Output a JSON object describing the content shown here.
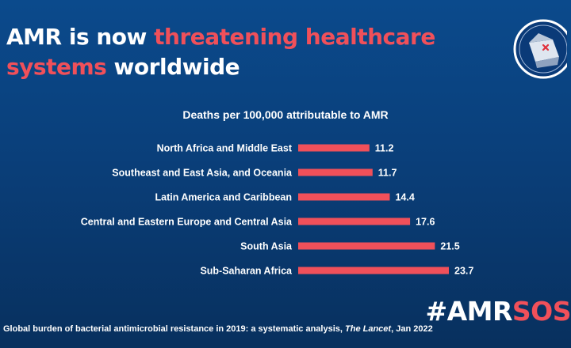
{
  "header": {
    "title_part1": "AMR is now ",
    "title_part2": "threatening healthcare",
    "title_part3": "systems",
    "title_part4": " worldwide"
  },
  "hashtag": {
    "prefix": "#AMR",
    "suffix": "SOS"
  },
  "source": {
    "text": "Global burden of bacterial antimicrobial resistance in 2019: a systematic analysis, ",
    "journal": "The Lancet",
    "date": ", Jan 2022"
  },
  "colors": {
    "background": "#0a3f7a",
    "bar": "#f0505a",
    "accent": "#f0505a",
    "text": "#ffffff"
  },
  "chart_data": {
    "type": "bar",
    "orientation": "horizontal",
    "title": "Deaths per 100,000 attributable to AMR",
    "categories": [
      "North Africa and Middle East",
      "Southeast and East Asia, and Oceania",
      "Latin America and Caribbean",
      "Central and Eastern Europe and Central Asia",
      "South Asia",
      "Sub-Saharan Africa"
    ],
    "values": [
      11.2,
      11.7,
      14.4,
      17.6,
      21.5,
      23.7
    ],
    "value_labels": [
      "11.2",
      "11.7",
      "14.4",
      "17.6",
      "21.5",
      "23.7"
    ],
    "xlim": [
      0,
      23.7
    ],
    "grid": false,
    "legend": "none"
  }
}
